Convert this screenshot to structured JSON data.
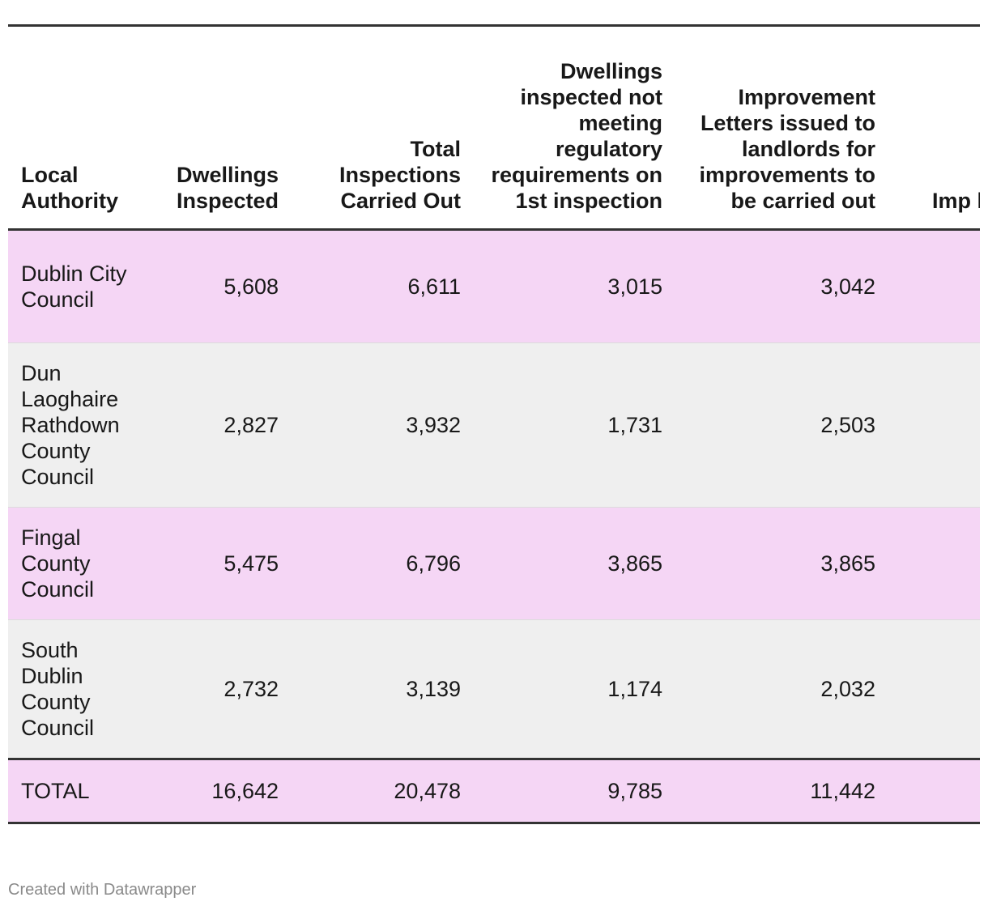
{
  "chart_data": {
    "type": "table",
    "columns": [
      "Local Authority",
      "Dwellings Inspected",
      "Total Inspections Carried Out",
      "Dwellings inspected not meeting regulatory requirements on 1st inspection",
      "Improvement Letters issued to landlords for improvements to be carried out",
      "Imp lan impr to"
    ],
    "rows": [
      {
        "authority": "Dublin City Council",
        "dwellings_inspected": "5,608",
        "total_inspections": "6,611",
        "not_meeting": "3,015",
        "improvement_letters": "3,042",
        "col6": ""
      },
      {
        "authority": "Dun Laoghaire Rathdown County Council",
        "dwellings_inspected": "2,827",
        "total_inspections": "3,932",
        "not_meeting": "1,731",
        "improvement_letters": "2,503",
        "col6": ""
      },
      {
        "authority": "Fingal County Council",
        "dwellings_inspected": "5,475",
        "total_inspections": "6,796",
        "not_meeting": "3,865",
        "improvement_letters": "3,865",
        "col6": ""
      },
      {
        "authority": "South Dublin County Council",
        "dwellings_inspected": "2,732",
        "total_inspections": "3,139",
        "not_meeting": "1,174",
        "improvement_letters": "2,032",
        "col6": ""
      }
    ],
    "total": {
      "authority": "TOTAL",
      "dwellings_inspected": "16,642",
      "total_inspections": "20,478",
      "not_meeting": "9,785",
      "improvement_letters": "11,442",
      "col6": ""
    },
    "row_colors": [
      "#f5d6f5",
      "#efefef"
    ]
  },
  "footer": {
    "credit": "Created with Datawrapper"
  }
}
